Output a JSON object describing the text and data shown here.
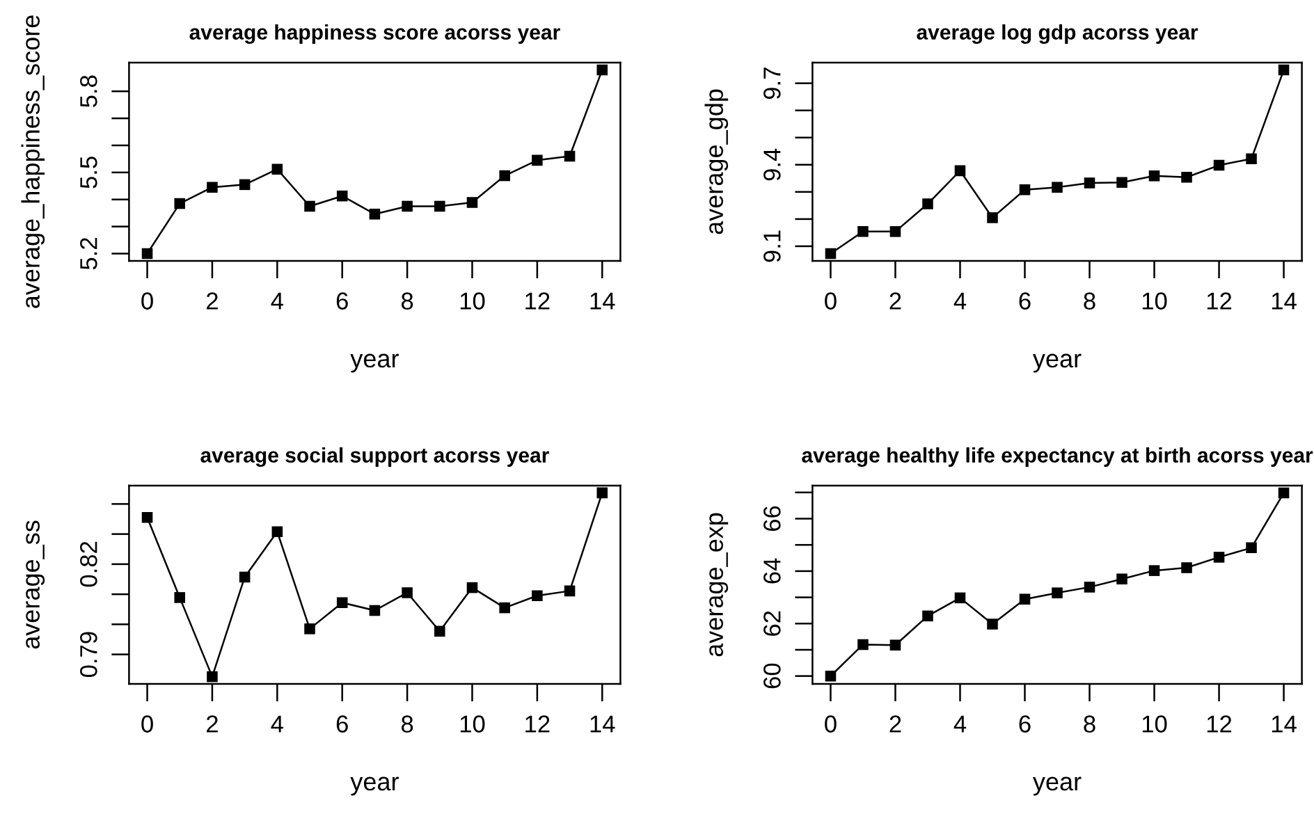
{
  "chart_data": [
    {
      "type": "line",
      "title": "average happiness score acorss year",
      "xlabel": "year",
      "ylabel": "average_happiness_score",
      "x": [
        0,
        1,
        2,
        3,
        4,
        5,
        6,
        7,
        8,
        9,
        10,
        11,
        12,
        13,
        14
      ],
      "series": [
        {
          "color": "#000000",
          "values": [
            5.2,
            5.385,
            5.445,
            5.455,
            5.512,
            5.375,
            5.413,
            5.346,
            5.375,
            5.375,
            5.389,
            5.488,
            5.545,
            5.56,
            5.879
          ]
        }
      ],
      "xlim": [
        -0.56,
        14.56
      ],
      "xticks": [
        0,
        2,
        4,
        6,
        8,
        10,
        12,
        14
      ],
      "ylim": [
        5.173,
        5.906
      ],
      "yticks": [
        5.2,
        {
          "value": 5.3,
          "label": null
        },
        {
          "value": 5.4,
          "label": null
        },
        5.5,
        {
          "value": 5.6,
          "label": null
        },
        {
          "value": 5.7,
          "label": null
        },
        5.8
      ],
      "marker": "square",
      "line_style": "solid"
    },
    {
      "type": "line",
      "title": "average log gdp acorss year",
      "xlabel": "year",
      "ylabel": "average_gdp",
      "x": [
        0,
        1,
        2,
        3,
        4,
        5,
        6,
        7,
        8,
        9,
        10,
        11,
        12,
        13,
        14
      ],
      "series": [
        {
          "color": "#000000",
          "values": [
            9.073,
            9.154,
            9.154,
            9.256,
            9.378,
            9.205,
            9.308,
            9.317,
            9.333,
            9.335,
            9.359,
            9.354,
            9.398,
            9.422,
            9.749
          ]
        }
      ],
      "xlim": [
        -0.56,
        14.56
      ],
      "xticks": [
        0,
        2,
        4,
        6,
        8,
        10,
        12,
        14
      ],
      "ylim": [
        9.046,
        9.776
      ],
      "yticks": [
        9.1,
        {
          "value": 9.2,
          "label": null
        },
        {
          "value": 9.3,
          "label": null
        },
        9.4,
        {
          "value": 9.5,
          "label": null
        },
        {
          "value": 9.6,
          "label": null
        },
        9.7
      ],
      "marker": "square",
      "line_style": "solid"
    },
    {
      "type": "line",
      "title": "average social support acorss year",
      "xlabel": "year",
      "ylabel": "average_ss",
      "x": [
        0,
        1,
        2,
        3,
        4,
        5,
        6,
        7,
        8,
        9,
        10,
        11,
        12,
        13,
        14
      ],
      "series": [
        {
          "color": "#000000",
          "values": [
            0.8355,
            0.8089,
            0.7826,
            0.8157,
            0.8308,
            0.7985,
            0.8072,
            0.8046,
            0.8105,
            0.7977,
            0.8122,
            0.8055,
            0.8095,
            0.8111,
            0.8437
          ]
        }
      ],
      "xlim": [
        -0.56,
        14.56
      ],
      "xticks": [
        0,
        2,
        4,
        6,
        8,
        10,
        12,
        14
      ],
      "ylim": [
        0.7802,
        0.8461
      ],
      "yticks": [
        0.79,
        {
          "value": 0.8,
          "label": null
        },
        {
          "value": 0.81,
          "label": null
        },
        0.82,
        {
          "value": 0.83,
          "label": null
        },
        {
          "value": 0.84,
          "label": null
        }
      ],
      "marker": "square",
      "line_style": "solid"
    },
    {
      "type": "line",
      "title": "average healthy life expectancy at birth acorss year",
      "xlabel": "year",
      "ylabel": "average_exp",
      "x": [
        0,
        1,
        2,
        3,
        4,
        5,
        6,
        7,
        8,
        9,
        10,
        11,
        12,
        13,
        14
      ],
      "series": [
        {
          "color": "#000000",
          "values": [
            60.0,
            61.2,
            61.18,
            62.29,
            62.98,
            61.98,
            62.93,
            63.17,
            63.39,
            63.7,
            64.02,
            64.13,
            64.53,
            64.89,
            66.98
          ]
        }
      ],
      "xlim": [
        -0.56,
        14.56
      ],
      "xticks": [
        0,
        2,
        4,
        6,
        8,
        10,
        12,
        14
      ],
      "ylim": [
        59.7,
        67.26
      ],
      "yticks": [
        60,
        {
          "value": 61,
          "label": null
        },
        62,
        {
          "value": 63,
          "label": null
        },
        64,
        {
          "value": 65,
          "label": null
        },
        66,
        {
          "value": 67,
          "label": null
        }
      ],
      "marker": "square",
      "line_style": "solid"
    }
  ]
}
